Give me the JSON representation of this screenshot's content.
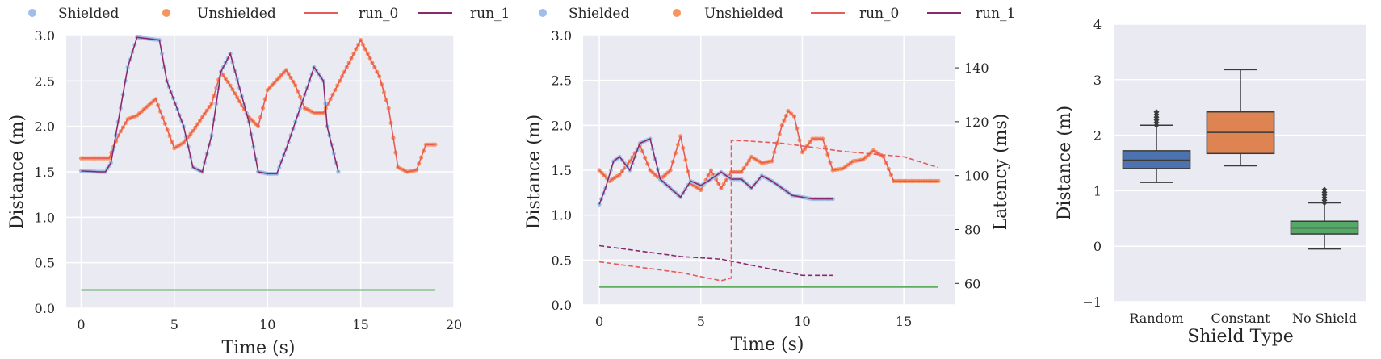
{
  "colors": {
    "shielded": "#9fbfe8",
    "unshielded": "#f7955e",
    "run_0": "#e8595a",
    "run_1": "#8b2a6a",
    "floor": "#5fae5f",
    "panel_bg": "#eaeaf2",
    "grid": "#ffffff",
    "box_random": "#4c72b0",
    "box_constant": "#dd8452",
    "box_noshield": "#55a868",
    "box_edge": "#3a3a3a"
  },
  "chart_data": [
    {
      "type": "line",
      "legend": [
        "Shielded",
        "Unshielded",
        "run_0",
        "run_1"
      ],
      "xlabel": "Time (s)",
      "ylabel": "Distance (m)",
      "xlim": [
        -0.8,
        20
      ],
      "ylim": [
        0,
        3
      ],
      "xticks": [
        "0",
        "5",
        "10",
        "15",
        "20"
      ],
      "yticks": [
        "0.0",
        "0.5",
        "1.0",
        "1.5",
        "2.0",
        "2.5",
        "3.0"
      ],
      "grid": true,
      "series": [
        {
          "name": "run_0",
          "x": [
            0,
            1,
            1.5,
            2,
            2.5,
            3,
            4,
            5,
            5.5,
            6,
            7,
            7.5,
            8,
            9,
            9.5,
            10,
            11,
            11.5,
            12,
            12.5,
            13,
            14,
            15,
            15.5,
            16,
            16.5,
            17,
            17.5,
            18,
            18.5,
            19
          ],
          "y": [
            1.65,
            1.65,
            1.65,
            1.9,
            2.08,
            2.12,
            2.3,
            1.76,
            1.82,
            1.95,
            2.25,
            2.6,
            2.45,
            2.1,
            2.0,
            2.4,
            2.62,
            2.45,
            2.2,
            2.15,
            2.15,
            2.55,
            2.95,
            2.75,
            2.55,
            2.2,
            1.55,
            1.5,
            1.52,
            1.8,
            1.8
          ]
        },
        {
          "name": "run_1",
          "x": [
            0,
            1,
            1.3,
            1.6,
            2.5,
            3,
            4.2,
            4.6,
            5.5,
            6,
            6.5,
            7,
            7.5,
            8,
            9,
            9.5,
            10,
            10.5,
            11,
            12,
            12.5,
            13,
            13.2,
            13.8
          ],
          "y": [
            1.51,
            1.5,
            1.5,
            1.6,
            2.65,
            2.98,
            2.95,
            2.5,
            2.0,
            1.55,
            1.5,
            1.9,
            2.6,
            2.8,
            2.05,
            1.5,
            1.48,
            1.48,
            1.75,
            2.35,
            2.65,
            2.5,
            2.0,
            1.5
          ]
        }
      ],
      "reference_line": {
        "y": 0.2,
        "x": [
          0,
          19
        ]
      }
    },
    {
      "type": "line",
      "legend": [
        "Shielded",
        "Unshielded",
        "run_0",
        "run_1"
      ],
      "xlabel": "Time (s)",
      "ylabel": "Distance (m)",
      "y2label": "Latency (ms)",
      "xlim": [
        -0.8,
        17.5
      ],
      "ylim": [
        0,
        3
      ],
      "y2lim": [
        52,
        152
      ],
      "xticks": [
        "0",
        "5",
        "10",
        "15"
      ],
      "yticks": [
        "0.0",
        "0.5",
        "1.0",
        "1.5",
        "2.0",
        "2.5",
        "3.0"
      ],
      "y2ticks": [
        "60",
        "80",
        "100",
        "120",
        "140"
      ],
      "grid": true,
      "series": [
        {
          "name": "run_0",
          "x": [
            0,
            0.5,
            1,
            1.5,
            2,
            2.5,
            3,
            3.5,
            4,
            4.5,
            5,
            5.5,
            6,
            6.5,
            7,
            7.5,
            8,
            8.5,
            9,
            9.3,
            9.6,
            10,
            10.5,
            11,
            11.5,
            12,
            12.5,
            13,
            13.5,
            14,
            14.5,
            15,
            15.5,
            16,
            16.7
          ],
          "y": [
            1.5,
            1.38,
            1.45,
            1.6,
            1.78,
            1.5,
            1.4,
            1.5,
            1.88,
            1.35,
            1.28,
            1.5,
            1.3,
            1.48,
            1.48,
            1.65,
            1.58,
            1.6,
            2.0,
            2.16,
            2.1,
            1.7,
            1.85,
            1.85,
            1.5,
            1.52,
            1.6,
            1.62,
            1.72,
            1.65,
            1.38,
            1.38,
            1.38,
            1.38,
            1.38
          ]
        },
        {
          "name": "run_1",
          "x": [
            0,
            0.3,
            0.7,
            1,
            1.5,
            2,
            2.5,
            3,
            3.5,
            4,
            4.5,
            5,
            5.5,
            6,
            6.5,
            7,
            7.5,
            8,
            8.5,
            9,
            9.5,
            10,
            10.5,
            11,
            11.5
          ],
          "y": [
            1.12,
            1.3,
            1.6,
            1.65,
            1.5,
            1.8,
            1.85,
            1.4,
            1.3,
            1.2,
            1.38,
            1.33,
            1.4,
            1.48,
            1.4,
            1.4,
            1.3,
            1.44,
            1.38,
            1.3,
            1.22,
            1.2,
            1.18,
            1.18,
            1.18
          ]
        },
        {
          "name": "run_0 latency",
          "axis": "right",
          "x": [
            0,
            2,
            4,
            6,
            6.5,
            6.5,
            7,
            9,
            12,
            15,
            16.7
          ],
          "y": [
            68,
            66,
            64,
            61,
            62,
            113,
            113,
            112,
            109,
            107,
            103
          ]
        },
        {
          "name": "run_1 latency",
          "axis": "right",
          "x": [
            0,
            2,
            4,
            6,
            8,
            10,
            11.5
          ],
          "y": [
            74,
            72,
            70,
            69,
            66,
            63,
            63
          ]
        }
      ],
      "reference_line": {
        "y": 0.2,
        "x": [
          0,
          16.7
        ]
      }
    },
    {
      "type": "box",
      "xlabel": "Shield Type",
      "ylabel": "Distance (m)",
      "ylim": [
        -1,
        4
      ],
      "yticks": [
        "−1",
        "0",
        "1",
        "2",
        "3",
        "4"
      ],
      "categories": [
        "Random",
        "Constant",
        "No Shield"
      ],
      "boxes": [
        {
          "whisker_low": 1.15,
          "q1": 1.4,
          "median": 1.55,
          "q3": 1.72,
          "whisker_high": 2.18,
          "outliers_high": 2.42
        },
        {
          "whisker_low": 1.45,
          "q1": 1.67,
          "median": 2.05,
          "q3": 2.42,
          "whisker_high": 3.18,
          "outliers_high": null
        },
        {
          "whisker_low": -0.05,
          "q1": 0.22,
          "median": 0.33,
          "q3": 0.45,
          "whisker_high": 0.78,
          "outliers_high": 1.02
        }
      ]
    }
  ]
}
